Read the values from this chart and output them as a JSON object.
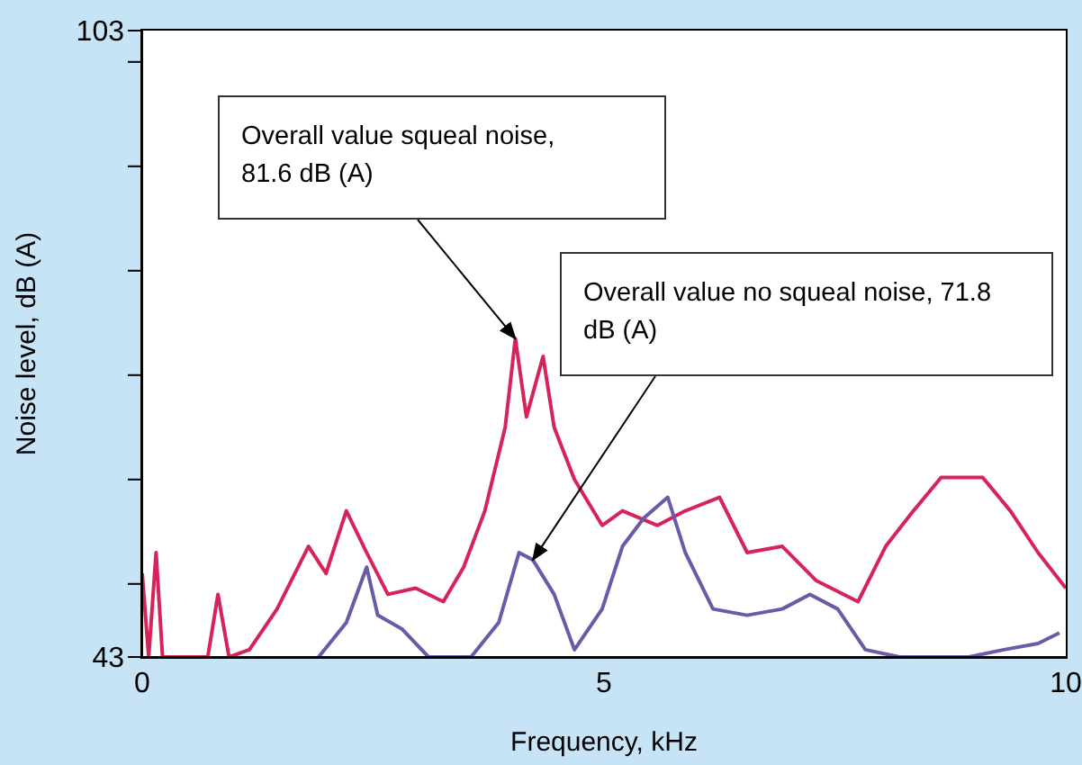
{
  "chart_data": {
    "type": "line",
    "xlabel": "Frequency, kHz",
    "ylabel": "Noise level, dB (A)",
    "xlim": [
      0,
      10
    ],
    "xticks": [
      0,
      5,
      10
    ],
    "ylim": [
      43,
      103
    ],
    "yticks": [
      43,
      {
        "value": 50,
        "label": null
      },
      {
        "value": 60,
        "label": null
      },
      {
        "value": 70,
        "label": null
      },
      {
        "value": 80,
        "label": null
      },
      {
        "value": 90,
        "label": null
      },
      {
        "value": 100,
        "label": null
      },
      103
    ],
    "grid": false,
    "legend": false,
    "marker": "none",
    "line_style": "solid",
    "series": [
      {
        "color": "#d6245a",
        "x": [
          0,
          0.07,
          0.15,
          0.22,
          0.71,
          0.82,
          0.94,
          1.16,
          1.46,
          1.8,
          1.99,
          2.21,
          2.43,
          2.66,
          2.96,
          3.26,
          3.48,
          3.71,
          3.93,
          4.04,
          4.16,
          4.34,
          4.46,
          4.68,
          4.98,
          5.2,
          5.58,
          5.88,
          6.25,
          6.55,
          6.93,
          7.3,
          7.75,
          8.05,
          8.35,
          8.65,
          9.1,
          9.4,
          9.7,
          10
        ],
        "values": [
          51,
          43,
          53,
          43,
          43,
          49,
          43,
          43.7,
          47.6,
          53.6,
          51,
          57,
          53,
          49,
          49.6,
          48.3,
          51.6,
          57,
          65,
          73.5,
          66,
          71.8,
          65,
          60,
          55.6,
          57,
          55.6,
          57,
          58.3,
          53,
          53.6,
          50.3,
          48.3,
          53.6,
          57,
          60.2,
          60.2,
          57,
          53,
          49.6
        ]
      },
      {
        "color": "#6a5aa8",
        "x": [
          1.91,
          2.21,
          2.43,
          2.55,
          2.81,
          3.1,
          3.56,
          3.86,
          4.08,
          4.23,
          4.46,
          4.68,
          4.98,
          5.2,
          5.43,
          5.69,
          5.88,
          6.18,
          6.55,
          6.93,
          7.23,
          7.53,
          7.83,
          8.2,
          8.95,
          9.33,
          9.7,
          9.93
        ],
        "values": [
          43,
          46.3,
          51.6,
          47,
          45.7,
          43,
          43,
          46.3,
          53,
          52.3,
          49,
          43.7,
          47.6,
          53.6,
          56.3,
          58.3,
          53,
          47.6,
          47,
          47.6,
          49,
          47.6,
          43.7,
          43,
          43,
          43.7,
          44.3,
          45.3
        ]
      }
    ],
    "annotations": [
      {
        "text": "Overall value squeal noise, 81.6 dB (A)",
        "x": 4.04,
        "y": 73.5
      },
      {
        "text": "Overall value no squeal noise, 71.8 dB (A)",
        "x": 4.23,
        "y": 52.3
      }
    ]
  }
}
